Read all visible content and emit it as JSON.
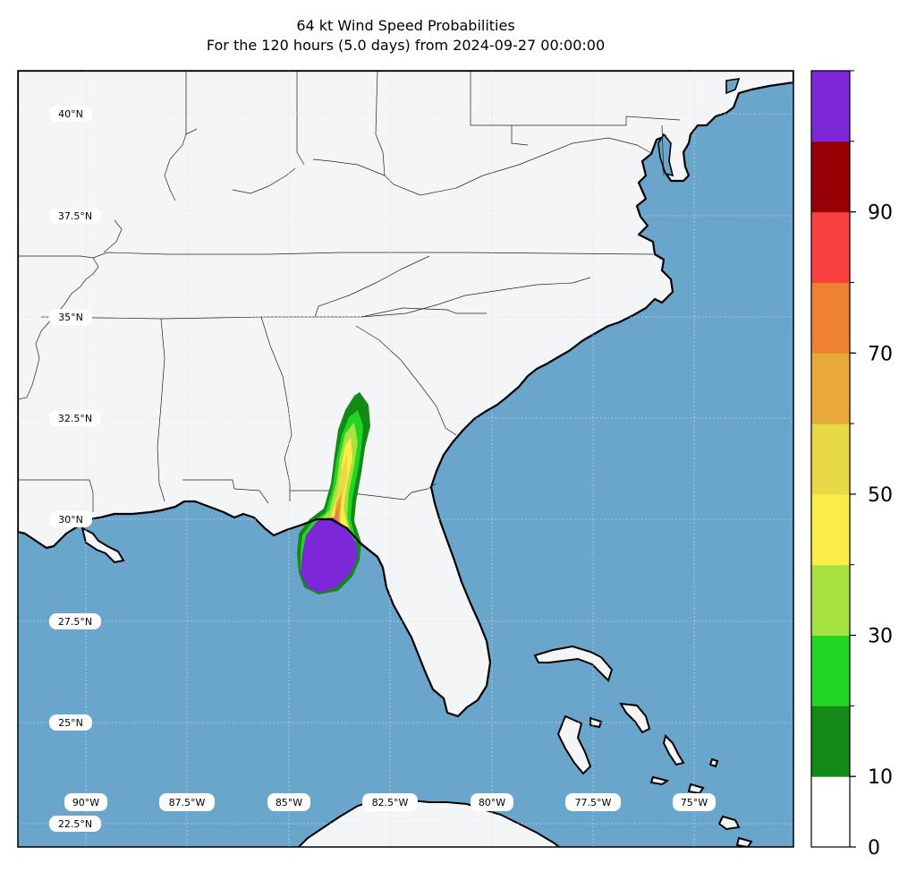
{
  "title": {
    "line1": "64 kt Wind Speed Probabilities",
    "line2": "For the 120 hours (5.0 days) from 2024-09-27 00:00:00"
  },
  "map": {
    "ocean_color": "#6aa6cc",
    "land_color": "#f4f5f7",
    "coast_color": "#000000",
    "border_color": "#222222",
    "grid_color": "#d0d8e0",
    "lat_labels": [
      "40°N",
      "37.5°N",
      "35°N",
      "32.5°N",
      "30°N",
      "27.5°N",
      "25°N",
      "22.5°N"
    ],
    "lon_labels": [
      "90°W",
      "87.5°W",
      "85°W",
      "82.5°W",
      "80°W",
      "77.5°W",
      "75°W"
    ]
  },
  "colorbar": {
    "colors": [
      "#ffffff",
      "#138a16",
      "#22d522",
      "#a6e342",
      "#fbec48",
      "#e8da44",
      "#e6a93a",
      "#ef8132",
      "#f94040",
      "#960006",
      "#7c28d8"
    ],
    "tick_labels": [
      "0",
      "10",
      "30",
      "50",
      "70",
      "90"
    ],
    "tick_values": [
      0,
      10,
      30,
      50,
      70,
      90
    ],
    "min": 0,
    "max": 100
  }
}
